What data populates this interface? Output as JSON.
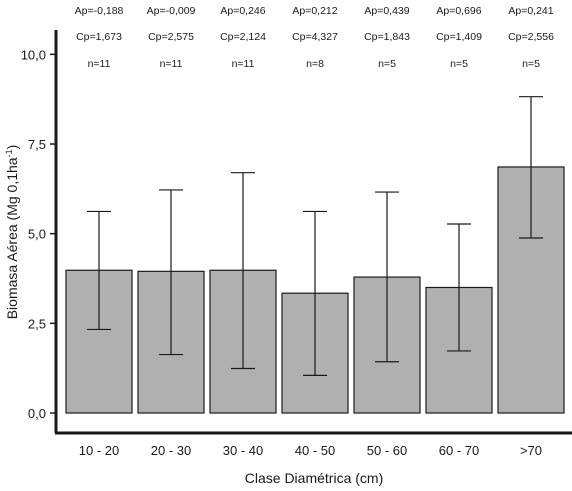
{
  "chart_data": {
    "type": "bar",
    "xlabel": "Clase Diamétrica (cm)",
    "ylabel_main": "Biomasa Aérea (Mg 0,1ha",
    "ylabel_sup": "-1",
    "ylabel_close": ")",
    "ylim": [
      0,
      10.4
    ],
    "yticks": [
      {
        "value": 0,
        "label": "0,0"
      },
      {
        "value": 2.5,
        "label": "2,5"
      },
      {
        "value": 5,
        "label": "5,0"
      },
      {
        "value": 7.5,
        "label": "7,5"
      },
      {
        "value": 10,
        "label": "10,0"
      }
    ],
    "categories": [
      "10 - 20",
      "20 - 30",
      "30 - 40",
      "40 - 50",
      "50 - 60",
      "60 - 70",
      ">70"
    ],
    "values": [
      3.98,
      3.95,
      3.98,
      3.34,
      3.79,
      3.5,
      6.86
    ],
    "error_low": [
      2.33,
      1.63,
      1.24,
      1.05,
      1.43,
      1.73,
      4.88
    ],
    "error_high": [
      5.62,
      6.22,
      6.7,
      5.62,
      6.16,
      5.27,
      8.82
    ],
    "bar_color": "#b0b0b0",
    "annotations": [
      {
        "ap": "Ap=-0,188",
        "cp": "Cp=1,673",
        "n": "n=11"
      },
      {
        "ap": "Ap=-0,009",
        "cp": "Cp=2,575",
        "n": "n=11"
      },
      {
        "ap": "Ap=0,246",
        "cp": "Cp=2,124",
        "n": "n=11"
      },
      {
        "ap": "Ap=0,212",
        "cp": "Cp=4,327",
        "n": "n=8"
      },
      {
        "ap": "Ap=0,439",
        "cp": "Cp=1,843",
        "n": "n=5"
      },
      {
        "ap": "Ap=0,696",
        "cp": "Cp=1,409",
        "n": "n=5"
      },
      {
        "ap": "Ap=0,241",
        "cp": "Cp=2,556",
        "n": "n=5"
      }
    ]
  }
}
